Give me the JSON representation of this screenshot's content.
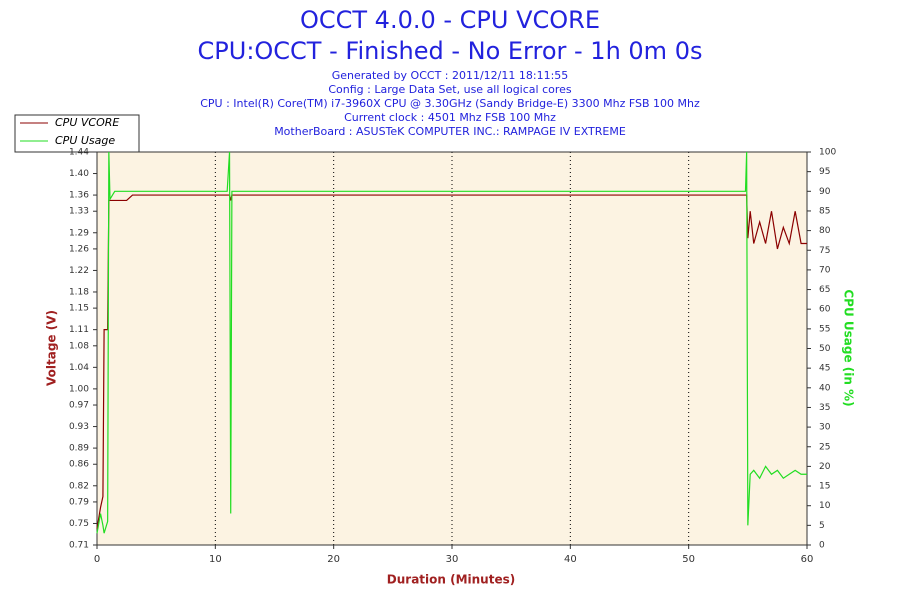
{
  "chart_data": {
    "type": "line",
    "title": "OCCT 4.0.0 - CPU VCORE",
    "subtitle": "CPU:OCCT - Finished - No Error - 1h 0m 0s",
    "info": [
      "Generated by OCCT : 2011/12/11 18:11:55",
      "Config : Large Data Set, use all logical cores",
      "CPU : Intel(R) Core(TM) i7-3960X CPU @ 3.30GHz (Sandy Bridge-E) 3300 Mhz FSB 100 Mhz",
      "Current clock : 4501 Mhz FSB 100 Mhz",
      "MotherBoard : ASUSTeK COMPUTER INC.: RAMPAGE IV EXTREME"
    ],
    "xlabel": "Duration (Minutes)",
    "ylabel": "Voltage (V)",
    "y2label": "CPU Usage (in %)",
    "x": [
      0,
      0.3,
      0.5,
      0.6,
      0.9,
      1.0,
      1.1,
      1.5,
      2.5,
      3,
      5,
      11,
      11.2,
      11.3,
      11.4,
      15,
      20,
      30,
      40,
      50,
      54.8,
      54.9,
      55,
      55.2,
      55.5,
      56,
      56.5,
      57,
      57.5,
      58,
      58.5,
      59,
      59.5,
      60
    ],
    "series": [
      {
        "name": "CPU VCORE",
        "color": "#8b0000",
        "values": [
          0.74,
          0.78,
          0.8,
          1.11,
          1.11,
          1.35,
          1.35,
          1.35,
          1.35,
          1.36,
          1.36,
          1.36,
          1.36,
          1.35,
          1.36,
          1.36,
          1.36,
          1.36,
          1.36,
          1.36,
          1.36,
          1.36,
          1.28,
          1.33,
          1.27,
          1.31,
          1.27,
          1.33,
          1.26,
          1.3,
          1.27,
          1.33,
          1.27,
          1.27
        ]
      },
      {
        "name": "CPU Usage",
        "color": "#22dd22",
        "axis": "y2",
        "values": [
          3,
          8,
          5,
          3,
          6,
          100,
          88,
          90,
          90,
          90,
          90,
          90,
          100,
          8,
          90,
          90,
          90,
          90,
          90,
          90,
          90,
          100,
          5,
          18,
          19,
          17,
          20,
          18,
          19,
          17,
          18,
          19,
          18,
          18
        ]
      }
    ],
    "xlim": [
      0,
      60
    ],
    "xticks": [
      0,
      10,
      20,
      30,
      40,
      50,
      60
    ],
    "ylim": [
      0.71,
      1.44
    ],
    "yticks": [
      0.71,
      0.75,
      0.79,
      0.82,
      0.86,
      0.89,
      0.93,
      0.97,
      {
        "value": 1,
        "label": "1.00"
      },
      1.04,
      1.08,
      1.11,
      1.15,
      1.18,
      1.22,
      1.26,
      1.29,
      1.33,
      1.36,
      {
        "value": 1.4,
        "label": "1.40"
      },
      1.44
    ],
    "y2lim": [
      0,
      100
    ],
    "y2ticks": [
      0,
      5,
      10,
      15,
      20,
      25,
      30,
      35,
      40,
      45,
      50,
      55,
      60,
      65,
      70,
      75,
      80,
      85,
      90,
      95,
      100
    ],
    "grid": true
  }
}
